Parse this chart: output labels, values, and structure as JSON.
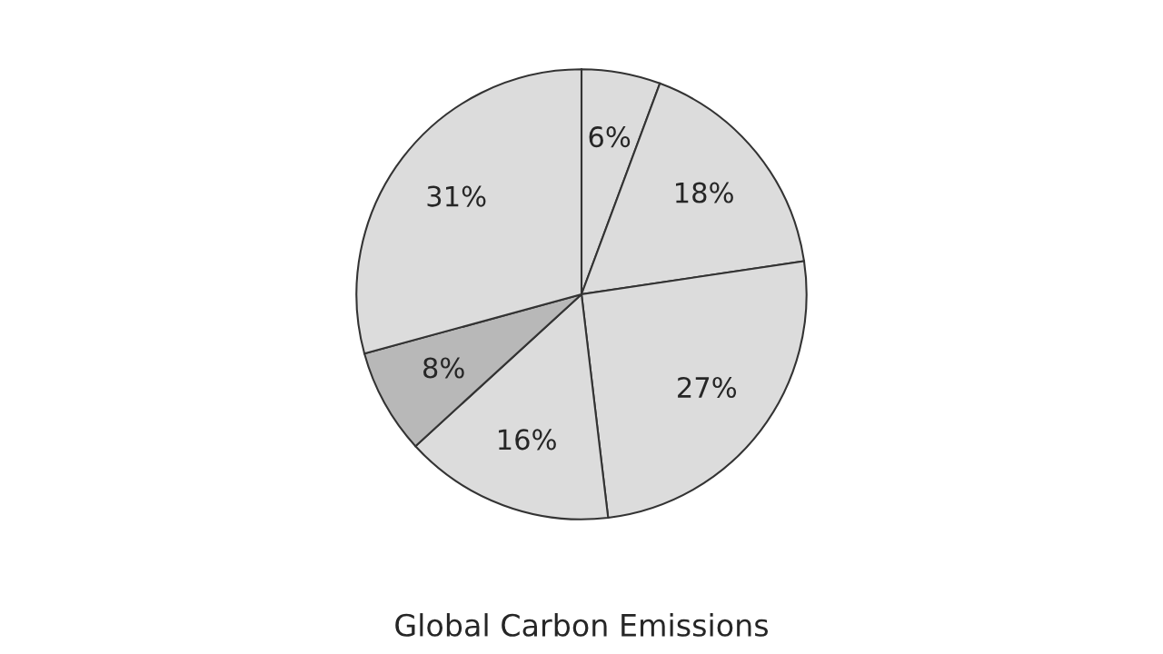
{
  "chart_data": {
    "type": "pie",
    "title": "Global Carbon Emissions",
    "categories": [
      null,
      null,
      null,
      null,
      null,
      null
    ],
    "values": [
      6,
      18,
      27,
      16,
      8,
      31
    ],
    "colors": [
      "#dcdcdc",
      "#dcdcdc",
      "#dcdcdc",
      "#dcdcdc",
      "#b8b8b8",
      "#dcdcdc"
    ],
    "value_labels": [
      "6%",
      "18%",
      "27%",
      "16%",
      "8%",
      "31%"
    ]
  }
}
